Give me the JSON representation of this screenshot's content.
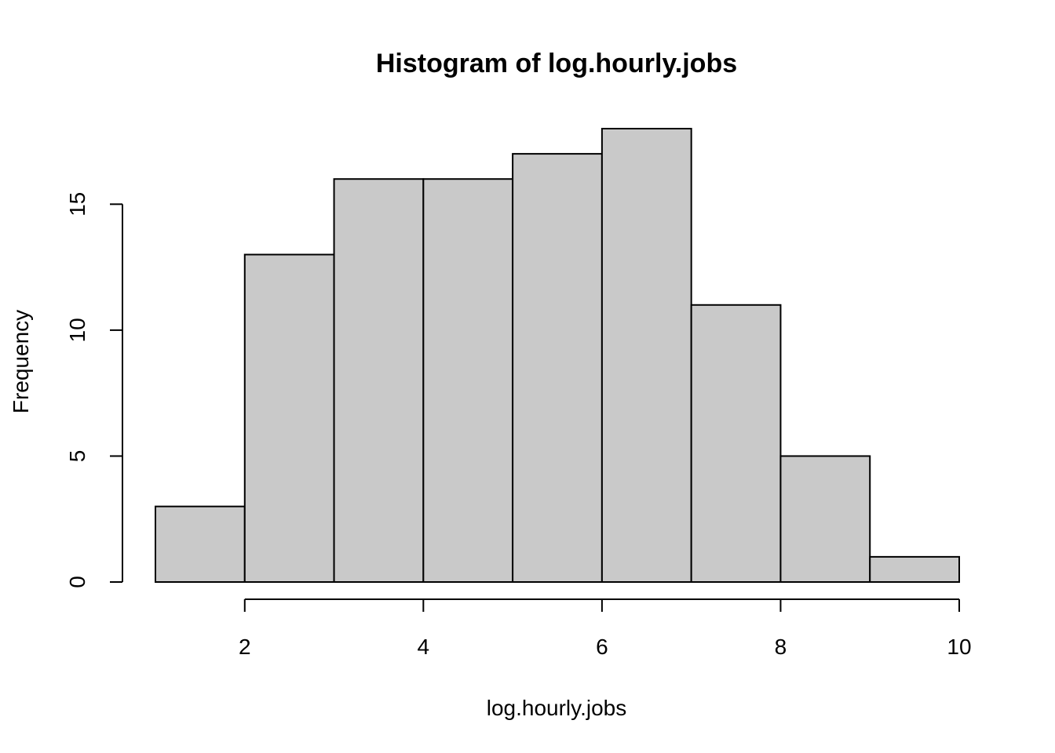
{
  "chart_data": {
    "type": "bar",
    "title": "Histogram of log.hourly.jobs",
    "xlabel": "log.hourly.jobs",
    "ylabel": "Frequency",
    "bins": [
      {
        "start": 1,
        "end": 2,
        "count": 3
      },
      {
        "start": 2,
        "end": 3,
        "count": 13
      },
      {
        "start": 3,
        "end": 4,
        "count": 16
      },
      {
        "start": 4,
        "end": 5,
        "count": 16
      },
      {
        "start": 5,
        "end": 6,
        "count": 17
      },
      {
        "start": 6,
        "end": 7,
        "count": 18
      },
      {
        "start": 7,
        "end": 8,
        "count": 11
      },
      {
        "start": 8,
        "end": 9,
        "count": 5
      },
      {
        "start": 9,
        "end": 10,
        "count": 1
      }
    ],
    "x_ticks": [
      "2",
      "4",
      "6",
      "8",
      "10"
    ],
    "y_ticks": [
      "0",
      "5",
      "10",
      "15"
    ],
    "xlim": [
      1,
      10
    ],
    "ylim": [
      0,
      18
    ],
    "grid": false,
    "bar_color": "#c9c9c9"
  }
}
